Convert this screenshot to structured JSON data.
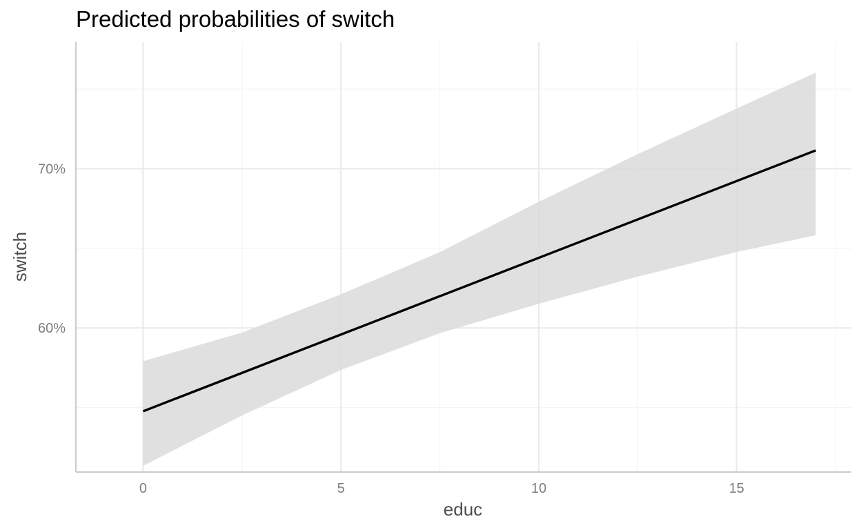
{
  "chart_data": {
    "type": "line",
    "title": "Predicted probabilities of switch",
    "xlabel": "educ",
    "ylabel": "switch",
    "xlim": [
      -1.7,
      17.9
    ],
    "ylim": [
      0.5095,
      0.7795
    ],
    "x_ticks": [
      0,
      5,
      10,
      15
    ],
    "x_tick_labels": [
      "0",
      "5",
      "10",
      "15"
    ],
    "x_minor_ticks": [
      2.5,
      7.5,
      12.5,
      17.5
    ],
    "y_ticks": [
      0.6,
      0.7
    ],
    "y_tick_labels": [
      "60%",
      "70%"
    ],
    "y_minor_ticks": [
      0.55,
      0.65,
      0.75
    ],
    "grid": true,
    "series": [
      {
        "x": [
          0,
          17
        ],
        "y": [
          0.5477,
          0.7115
        ],
        "ci_lower": [
          0.5134,
          0.6582
        ],
        "ci_upper": [
          0.5791,
          0.7603
        ],
        "ci_x": [
          0,
          2.5,
          5,
          7.5,
          10,
          12.5,
          15,
          17
        ],
        "ci_lower_values": [
          0.5134,
          0.5451,
          0.5736,
          0.5967,
          0.6152,
          0.6322,
          0.6477,
          0.6582
        ],
        "ci_upper_values": [
          0.5791,
          0.5971,
          0.6211,
          0.6476,
          0.6792,
          0.7091,
          0.7378,
          0.7603
        ]
      }
    ],
    "colors": {
      "line": "#000000",
      "band": "#d9d9d9",
      "grid_major": "#ebebeb",
      "grid_minor": "#f4f4f4",
      "axis": "#cccccc"
    }
  }
}
